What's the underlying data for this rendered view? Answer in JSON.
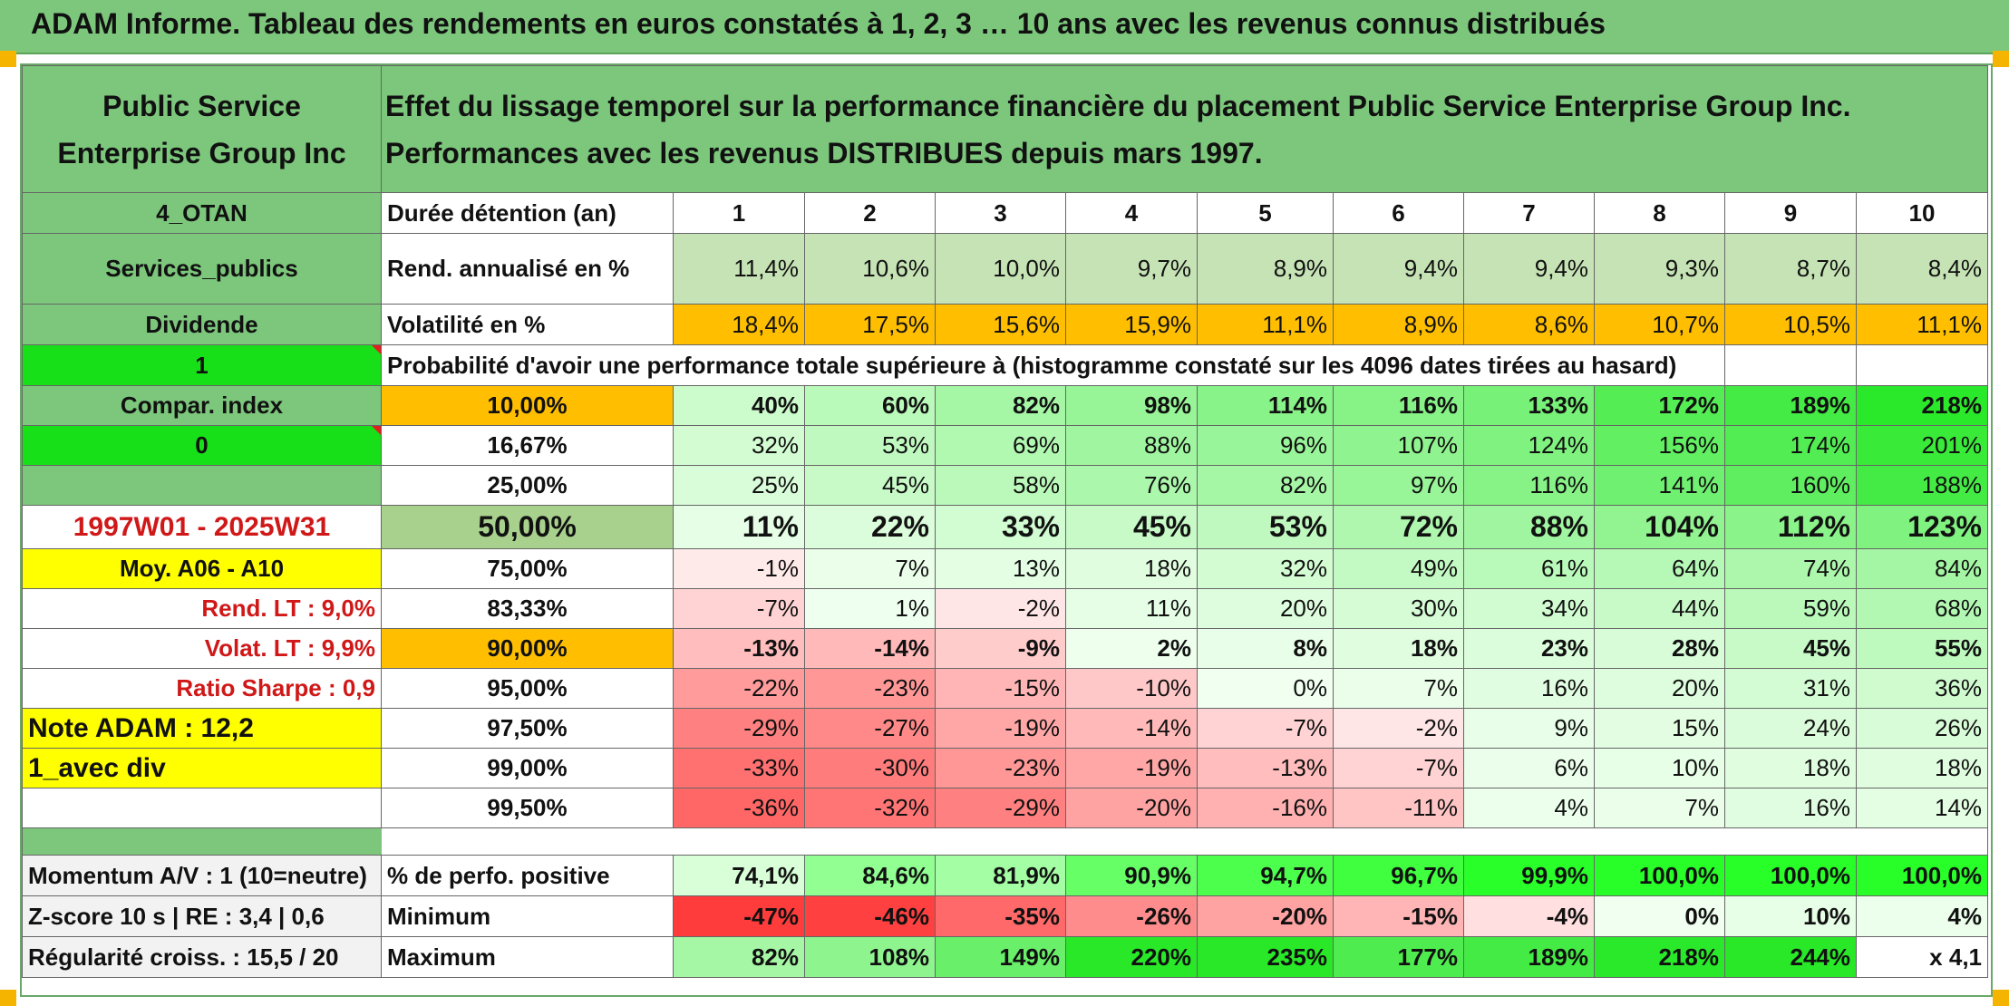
{
  "title": "ADAM Informe. Tableau des rendements en euros constatés à 1, 2, 3 … 10 ans avec les revenus connus distribués",
  "header": {
    "company": "Public Service Enterprise Group Inc",
    "description": "Effet du lissage temporel sur la performance financière du placement Public Service Enterprise Group Inc. Performances avec les revenus DISTRIBUES depuis mars 1997."
  },
  "left": {
    "code": "4_OTAN",
    "sector": "Services_publics",
    "type": "Dividende",
    "flag1": "1",
    "compar": "Compar. index",
    "flag0": "0",
    "period": "1997W01 - 2025W31",
    "moy": "Moy. A06 - A10",
    "rend_lt": "Rend. LT :   9,0%",
    "volat_lt": "Volat. LT :   9,9%",
    "sharpe": "Ratio Sharpe :   0,9",
    "note": "Note ADAM : 12,2",
    "avec_div": "1_avec div"
  },
  "years_label": "Durée détention (an)",
  "years": [
    "1",
    "2",
    "3",
    "4",
    "5",
    "6",
    "7",
    "8",
    "9",
    "10"
  ],
  "rend_label": "Rend. annualisé en %",
  "rend": [
    "11,4%",
    "10,6%",
    "10,0%",
    "9,7%",
    "8,9%",
    "9,4%",
    "9,4%",
    "9,3%",
    "8,7%",
    "8,4%"
  ],
  "vol_label": "Volatilité en %",
  "vol": [
    "18,4%",
    "17,5%",
    "15,6%",
    "15,9%",
    "11,1%",
    "8,9%",
    "8,6%",
    "10,7%",
    "10,5%",
    "11,1%"
  ],
  "prob_label": "Probabilité d'avoir une performance totale supérieure à (histogramme constaté sur les 4096 dates tirées au hasard)",
  "prob_rows": [
    {
      "pct": "10,00%",
      "vals": [
        "40%",
        "60%",
        "82%",
        "98%",
        "114%",
        "116%",
        "133%",
        "172%",
        "189%",
        "218%"
      ]
    },
    {
      "pct": "16,67%",
      "vals": [
        "32%",
        "53%",
        "69%",
        "88%",
        "96%",
        "107%",
        "124%",
        "156%",
        "174%",
        "201%"
      ]
    },
    {
      "pct": "25,00%",
      "vals": [
        "25%",
        "45%",
        "58%",
        "76%",
        "82%",
        "97%",
        "116%",
        "141%",
        "160%",
        "188%"
      ]
    },
    {
      "pct": "50,00%",
      "vals": [
        "11%",
        "22%",
        "33%",
        "45%",
        "53%",
        "72%",
        "88%",
        "104%",
        "112%",
        "123%"
      ]
    },
    {
      "pct": "75,00%",
      "vals": [
        "-1%",
        "7%",
        "13%",
        "18%",
        "32%",
        "49%",
        "61%",
        "64%",
        "74%",
        "84%"
      ]
    },
    {
      "pct": "83,33%",
      "vals": [
        "-7%",
        "1%",
        "-2%",
        "11%",
        "20%",
        "30%",
        "34%",
        "44%",
        "59%",
        "68%"
      ]
    },
    {
      "pct": "90,00%",
      "vals": [
        "-13%",
        "-14%",
        "-9%",
        "2%",
        "8%",
        "18%",
        "23%",
        "28%",
        "45%",
        "55%"
      ]
    },
    {
      "pct": "95,00%",
      "vals": [
        "-22%",
        "-23%",
        "-15%",
        "-10%",
        "0%",
        "7%",
        "16%",
        "20%",
        "31%",
        "36%"
      ]
    },
    {
      "pct": "97,50%",
      "vals": [
        "-29%",
        "-27%",
        "-19%",
        "-14%",
        "-7%",
        "-2%",
        "9%",
        "15%",
        "24%",
        "26%"
      ]
    },
    {
      "pct": "99,00%",
      "vals": [
        "-33%",
        "-30%",
        "-23%",
        "-19%",
        "-13%",
        "-7%",
        "6%",
        "10%",
        "18%",
        "18%"
      ]
    },
    {
      "pct": "99,50%",
      "vals": [
        "-36%",
        "-32%",
        "-29%",
        "-20%",
        "-16%",
        "-11%",
        "4%",
        "7%",
        "16%",
        "14%"
      ]
    }
  ],
  "bottom": {
    "momentum": "Momentum A/V : 1 (10=neutre)",
    "zscore": "Z-score 10 s | RE : 3,4 | 0,6",
    "regularite": "Régularité croiss. : 15,5 / 20",
    "pos_label": "% de perfo. positive",
    "pos": [
      "74,1%",
      "84,6%",
      "81,9%",
      "90,9%",
      "94,7%",
      "96,7%",
      "99,9%",
      "100,0%",
      "100,0%",
      "100,0%"
    ],
    "min_label": "Minimum",
    "min": [
      "-47%",
      "-46%",
      "-35%",
      "-26%",
      "-20%",
      "-15%",
      "-4%",
      "0%",
      "10%",
      "4%"
    ],
    "max_label": "Maximum",
    "max": [
      "82%",
      "108%",
      "149%",
      "220%",
      "235%",
      "177%",
      "189%",
      "218%",
      "244%",
      "x 4,1"
    ]
  },
  "colors": {
    "green": "#7cc77c",
    "light_green": "#c6e3b5",
    "orange": "#ffbf00",
    "yellow": "#ffff00",
    "bright_green": "#18e018",
    "red_text": "#d01818"
  }
}
